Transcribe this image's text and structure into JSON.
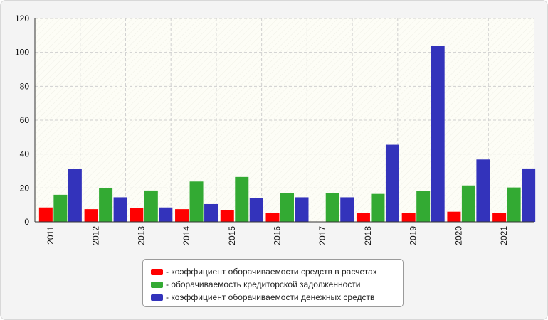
{
  "chart_data": {
    "type": "bar",
    "categories": [
      "2011",
      "2012",
      "2013",
      "2014",
      "2015",
      "2016",
      "2017",
      "2018",
      "2019",
      "2020",
      "2021"
    ],
    "series": [
      {
        "name": "- коэффициент оборачиваемости средств в расчетах",
        "color": "#ff0000",
        "values": [
          8.5,
          7.5,
          8.0,
          7.5,
          6.8,
          5.2,
          null,
          5.2,
          5.2,
          6.0,
          5.2
        ]
      },
      {
        "name": "- оборачиваемость кредиторской задолженности",
        "color": "#33aa33",
        "values": [
          16.0,
          20.0,
          18.5,
          23.8,
          26.5,
          17.0,
          17.0,
          16.5,
          18.3,
          21.5,
          20.3
        ]
      },
      {
        "name": "- коэффициент оборачиваемости денежных средств",
        "color": "#3333bb",
        "values": [
          31.2,
          14.5,
          8.5,
          10.5,
          14.0,
          14.5,
          14.5,
          45.5,
          104.0,
          36.8,
          31.5
        ]
      }
    ],
    "y_ticks": [
      "0",
      "20",
      "40",
      "60",
      "80",
      "100",
      "120"
    ],
    "ylim": [
      0,
      120
    ],
    "grid": true,
    "legend_position": "bottom-center"
  }
}
